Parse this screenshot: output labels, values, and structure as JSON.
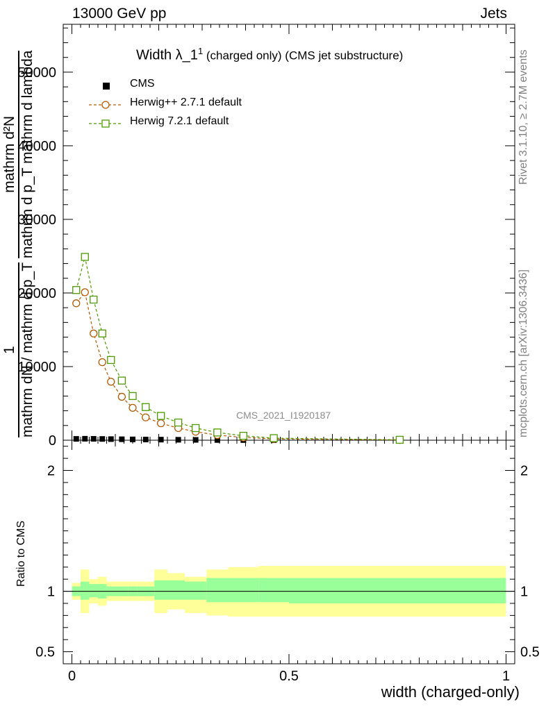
{
  "header": {
    "left": "13000 GeV pp",
    "right": "Jets"
  },
  "side_labels": {
    "rivet": "Rivet 3.1.10, ≥ 2.7M events",
    "mcplots": "mcplots.cern.ch [arXiv:1306.3436]"
  },
  "watermark": "CMS_2021_I1920187",
  "chart_data": [
    {
      "type": "line",
      "title": "Width λ_1¹ (charged only) (CMS jet substructure)",
      "title_main": "Width λ_1",
      "title_sup": "1",
      "title_rest": " (charged only) (CMS jet substructure)",
      "ylabel_numerator": "mathrm d²N",
      "ylabel_numerator_full": "1",
      "ylabel_denominator": "mathrm dN / mathrm d p_T mathrm d p_T mathrm d lambda",
      "ylabel_parts": [
        "1",
        "mathrm dN / mathrm d p_T",
        "mathrm d²N",
        "mathrm d p_T mathrm d lambda"
      ],
      "xlim": [
        -0.02,
        1.02
      ],
      "ylim": [
        0,
        56500
      ],
      "yticks": [
        0,
        10000,
        20000,
        30000,
        40000,
        50000
      ],
      "ytick_labels": [
        "0",
        "10000",
        "20000",
        "30000",
        "40000",
        "50000"
      ],
      "legend_position": "top-left",
      "series": [
        {
          "name": "CMS",
          "color": "#000000",
          "marker": "square-filled",
          "x": [
            0.01,
            0.03,
            0.05,
            0.07,
            0.09,
            0.115,
            0.14,
            0.17,
            0.205,
            0.245,
            0.285,
            0.335,
            0.395,
            0.465,
            0.755
          ],
          "y": [
            180,
            200,
            190,
            170,
            150,
            130,
            110,
            95,
            80,
            60,
            45,
            30,
            20,
            10,
            3
          ]
        },
        {
          "name": "Herwig++ 2.7.1 default",
          "color": "#b35900",
          "marker": "circle-open",
          "x": [
            0.01,
            0.03,
            0.05,
            0.07,
            0.09,
            0.115,
            0.14,
            0.17,
            0.205,
            0.245,
            0.285,
            0.335,
            0.395,
            0.465,
            0.755
          ],
          "y": [
            18600,
            20100,
            14500,
            10600,
            7950,
            5900,
            4400,
            3100,
            2300,
            1650,
            1150,
            700,
            380,
            180,
            40
          ]
        },
        {
          "name": "Herwig 7.2.1 default",
          "color": "#4d9900",
          "marker": "square-open",
          "x": [
            0.01,
            0.03,
            0.05,
            0.07,
            0.09,
            0.115,
            0.14,
            0.17,
            0.205,
            0.245,
            0.285,
            0.335,
            0.395,
            0.465,
            0.755
          ],
          "y": [
            20400,
            24900,
            19100,
            14500,
            10900,
            8100,
            6000,
            4500,
            3300,
            2400,
            1650,
            1050,
            600,
            280,
            55
          ]
        }
      ]
    },
    {
      "type": "area",
      "ylabel": "Ratio to CMS",
      "xlabel": "width (charged-only)",
      "xlim": [
        -0.02,
        1.02
      ],
      "ylim": [
        0.4,
        2.25
      ],
      "xticks": [
        0,
        0.5,
        1
      ],
      "xtick_labels": [
        "0",
        "0.5",
        "1"
      ],
      "yticks": [
        0.5,
        1,
        2
      ],
      "ytick_labels": [
        "0.5",
        "1",
        "2"
      ],
      "bins": [
        0,
        0.02,
        0.04,
        0.06,
        0.08,
        0.1,
        0.13,
        0.15,
        0.19,
        0.22,
        0.26,
        0.31,
        0.36,
        0.43,
        0.5,
        1.0
      ],
      "inner_band": {
        "color": "#99ff99",
        "low": [
          0.96,
          0.93,
          0.95,
          0.94,
          0.96,
          0.96,
          0.96,
          0.96,
          0.93,
          0.93,
          0.93,
          0.91,
          0.91,
          0.91,
          0.9
        ],
        "high": [
          1.04,
          1.08,
          1.06,
          1.06,
          1.04,
          1.04,
          1.04,
          1.04,
          1.09,
          1.09,
          1.08,
          1.11,
          1.11,
          1.11,
          1.11
        ]
      },
      "outer_band": {
        "color": "#ffff99",
        "low": [
          0.93,
          0.82,
          0.9,
          0.88,
          0.92,
          0.92,
          0.92,
          0.92,
          0.82,
          0.85,
          0.82,
          0.8,
          0.79,
          0.79,
          0.79
        ],
        "high": [
          1.07,
          1.18,
          1.1,
          1.12,
          1.08,
          1.08,
          1.08,
          1.08,
          1.18,
          1.15,
          1.12,
          1.18,
          1.2,
          1.21,
          1.21
        ]
      },
      "reference_line": 1
    }
  ]
}
